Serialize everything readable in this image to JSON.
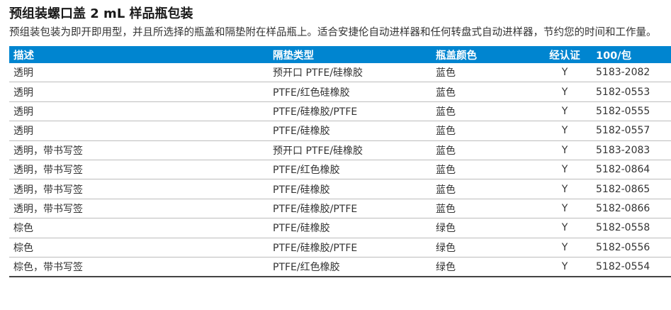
{
  "title": "预组装螺口盖 2 mL 样品瓶包装",
  "description": "预组装包装为即开即用型，并且所选择的瓶盖和隔垫附在样品瓶上。适合安捷伦自动进样器和任何转盘式自动进样器，节约您的时间和工作量。",
  "table": {
    "headers": [
      "描述",
      "隔垫类型",
      "瓶盖颜色",
      "经认证",
      "100/包"
    ],
    "rows": [
      [
        "透明",
        "预开口 PTFE/硅橡胶",
        "蓝色",
        "Y",
        "5183-2082"
      ],
      [
        "透明",
        "PTFE/红色硅橡胶",
        "蓝色",
        "Y",
        "5182-0553"
      ],
      [
        "透明",
        "PTFE/硅橡胶/PTFE",
        "蓝色",
        "Y",
        "5182-0555"
      ],
      [
        "透明",
        "PTFE/硅橡胶",
        "蓝色",
        "Y",
        "5182-0557"
      ],
      [
        "透明，带书写签",
        "预开口 PTFE/硅橡胶",
        "蓝色",
        "Y",
        "5183-2083"
      ],
      [
        "透明，带书写签",
        "PTFE/红色橡胶",
        "蓝色",
        "Y",
        "5182-0864"
      ],
      [
        "透明，带书写签",
        "PTFE/硅橡胶",
        "蓝色",
        "Y",
        "5182-0865"
      ],
      [
        "透明，带书写签",
        "PTFE/硅橡胶/PTFE",
        "蓝色",
        "Y",
        "5182-0866"
      ],
      [
        "棕色",
        "PTFE/硅橡胶",
        "绿色",
        "Y",
        "5182-0558"
      ],
      [
        "棕色",
        "PTFE/硅橡胶/PTFE",
        "绿色",
        "Y",
        "5182-0556"
      ],
      [
        "棕色，带书写签",
        "PTFE/红色橡胶",
        "绿色",
        "Y",
        "5182-0554"
      ]
    ]
  },
  "colors": {
    "header_bg": "#0085d0",
    "header_text": "#ffffff"
  }
}
